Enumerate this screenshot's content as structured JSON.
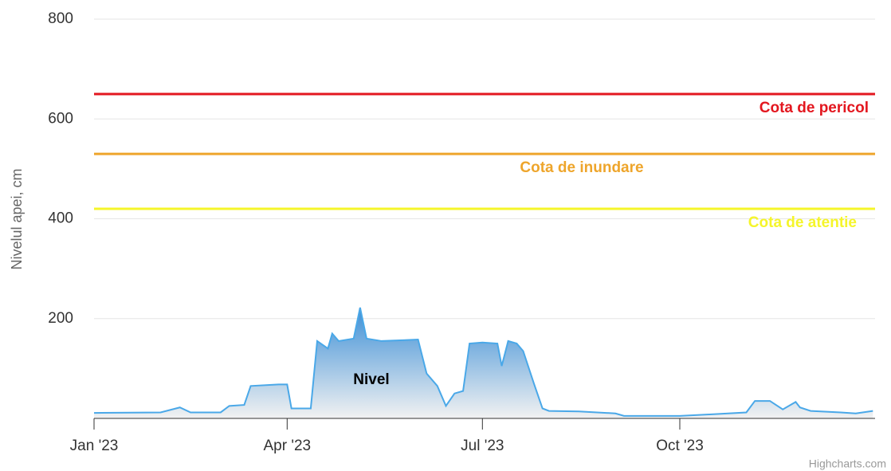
{
  "chart_data": {
    "type": "area",
    "y_axis_label": "Nivelul apei, cm",
    "credits": "Highcharts.com",
    "ylim": [
      0,
      800
    ],
    "yticks": [
      200,
      400,
      600,
      800
    ],
    "grid": true,
    "xlim": [
      "2023-01-01",
      "2023-12-31"
    ],
    "xticks": [
      {
        "value": "2023-01-01",
        "label": "Jan '23"
      },
      {
        "value": "2023-04-01",
        "label": "Apr '23"
      },
      {
        "value": "2023-07-01",
        "label": "Jul '23"
      },
      {
        "value": "2023-10-01",
        "label": "Oct '23"
      }
    ],
    "plot_lines": [
      {
        "label": "Cota de pericol",
        "value": 650,
        "color": "#e3171f"
      },
      {
        "label": "Cota de inundare",
        "value": 530,
        "color": "#eea52b"
      },
      {
        "label": "Cota de atentie",
        "value": 420,
        "color": "#f5f52a"
      }
    ],
    "series": [
      {
        "name": "Nivel",
        "color": "#4aa8e8",
        "x": [
          "2023-01-01",
          "2023-02-01",
          "2023-02-10",
          "2023-02-15",
          "2023-03-01",
          "2023-03-05",
          "2023-03-12",
          "2023-03-15",
          "2023-03-28",
          "2023-04-01",
          "2023-04-03",
          "2023-04-12",
          "2023-04-15",
          "2023-04-20",
          "2023-04-22",
          "2023-04-25",
          "2023-05-02",
          "2023-05-05",
          "2023-05-08",
          "2023-05-15",
          "2023-06-01",
          "2023-06-05",
          "2023-06-10",
          "2023-06-14",
          "2023-06-18",
          "2023-06-22",
          "2023-06-25",
          "2023-07-01",
          "2023-07-08",
          "2023-07-10",
          "2023-07-13",
          "2023-07-17",
          "2023-07-20",
          "2023-07-25",
          "2023-07-29",
          "2023-08-01",
          "2023-08-15",
          "2023-09-01",
          "2023-09-05",
          "2023-09-20",
          "2023-10-01",
          "2023-10-15",
          "2023-11-01",
          "2023-11-05",
          "2023-11-12",
          "2023-11-18",
          "2023-11-24",
          "2023-11-26",
          "2023-12-01",
          "2023-12-15",
          "2023-12-22",
          "2023-12-30"
        ],
        "values": [
          11,
          12,
          22,
          12,
          12,
          25,
          27,
          65,
          68,
          68,
          20,
          20,
          155,
          140,
          170,
          155,
          160,
          222,
          160,
          155,
          158,
          90,
          65,
          25,
          50,
          55,
          150,
          152,
          150,
          105,
          155,
          150,
          135,
          70,
          20,
          15,
          14,
          10,
          5,
          5,
          5,
          8,
          12,
          35,
          35,
          18,
          33,
          22,
          15,
          12,
          10,
          15
        ]
      }
    ]
  }
}
